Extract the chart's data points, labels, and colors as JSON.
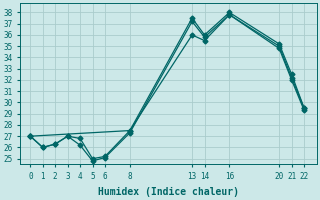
{
  "bg_color": "#cce8e8",
  "grid_color": "#aacccc",
  "line_color": "#006666",
  "xlabel": "Humidex (Indice chaleur)",
  "ylim": [
    24.5,
    38.8
  ],
  "xlim": [
    -0.8,
    23.0
  ],
  "yticks": [
    25,
    26,
    27,
    28,
    29,
    30,
    31,
    32,
    33,
    34,
    35,
    36,
    37,
    38
  ],
  "xticks": [
    0,
    1,
    2,
    3,
    4,
    5,
    6,
    8,
    13,
    14,
    16,
    20,
    21,
    22
  ],
  "line1_x": [
    0,
    1,
    2,
    3,
    4,
    5,
    6,
    8,
    13,
    14,
    16,
    20,
    21,
    22
  ],
  "line1_y": [
    27.0,
    26.0,
    26.3,
    27.0,
    26.8,
    25.0,
    25.2,
    27.5,
    37.5,
    36.0,
    38.0,
    35.2,
    32.5,
    29.5
  ],
  "line2_x": [
    0,
    1,
    2,
    3,
    4,
    5,
    6,
    8,
    13,
    14,
    16,
    20,
    21,
    22
  ],
  "line2_y": [
    27.0,
    26.0,
    26.3,
    27.0,
    26.2,
    24.8,
    25.1,
    27.3,
    37.2,
    35.8,
    37.8,
    35.0,
    32.2,
    29.5
  ],
  "line3_x": [
    0,
    8,
    13,
    14,
    16,
    20,
    21,
    22
  ],
  "line3_y": [
    27.0,
    27.5,
    36.0,
    35.5,
    37.8,
    34.8,
    32.0,
    29.3
  ],
  "marker_size": 2.5,
  "linewidth": 0.9,
  "tick_fontsize": 5.5,
  "xlabel_fontsize": 7
}
